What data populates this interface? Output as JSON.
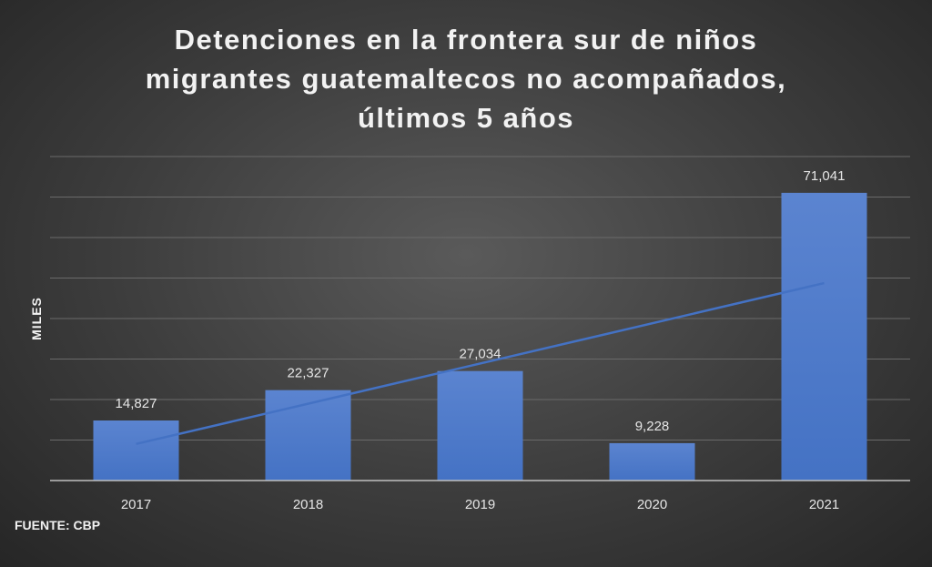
{
  "title": {
    "line1": "Detenciones en la frontera sur de niños",
    "line2": "migrantes guatemaltecos no acompañados,",
    "line3": "últimos 5 años"
  },
  "source": "FUENTE: CBP",
  "colors": {
    "bar": "#4472c4",
    "trendline": "#4472c4",
    "text": "#f2f2f2",
    "grid": "#6a6a6a"
  },
  "chart_data": {
    "type": "bar",
    "title": "Detenciones en la frontera sur de niños migrantes guatemaltecos no acompañados, últimos 5 años",
    "xlabel": "",
    "ylabel": "MILES",
    "categories": [
      "2017",
      "2018",
      "2019",
      "2020",
      "2021"
    ],
    "values": [
      14827,
      22327,
      27034,
      9228,
      71041
    ],
    "data_labels": [
      "14,827",
      "22,327",
      "27,034",
      "9,228",
      "71,041"
    ],
    "ylim": [
      0,
      80000
    ],
    "grid": true,
    "legend": "none",
    "trendline": "linear"
  }
}
